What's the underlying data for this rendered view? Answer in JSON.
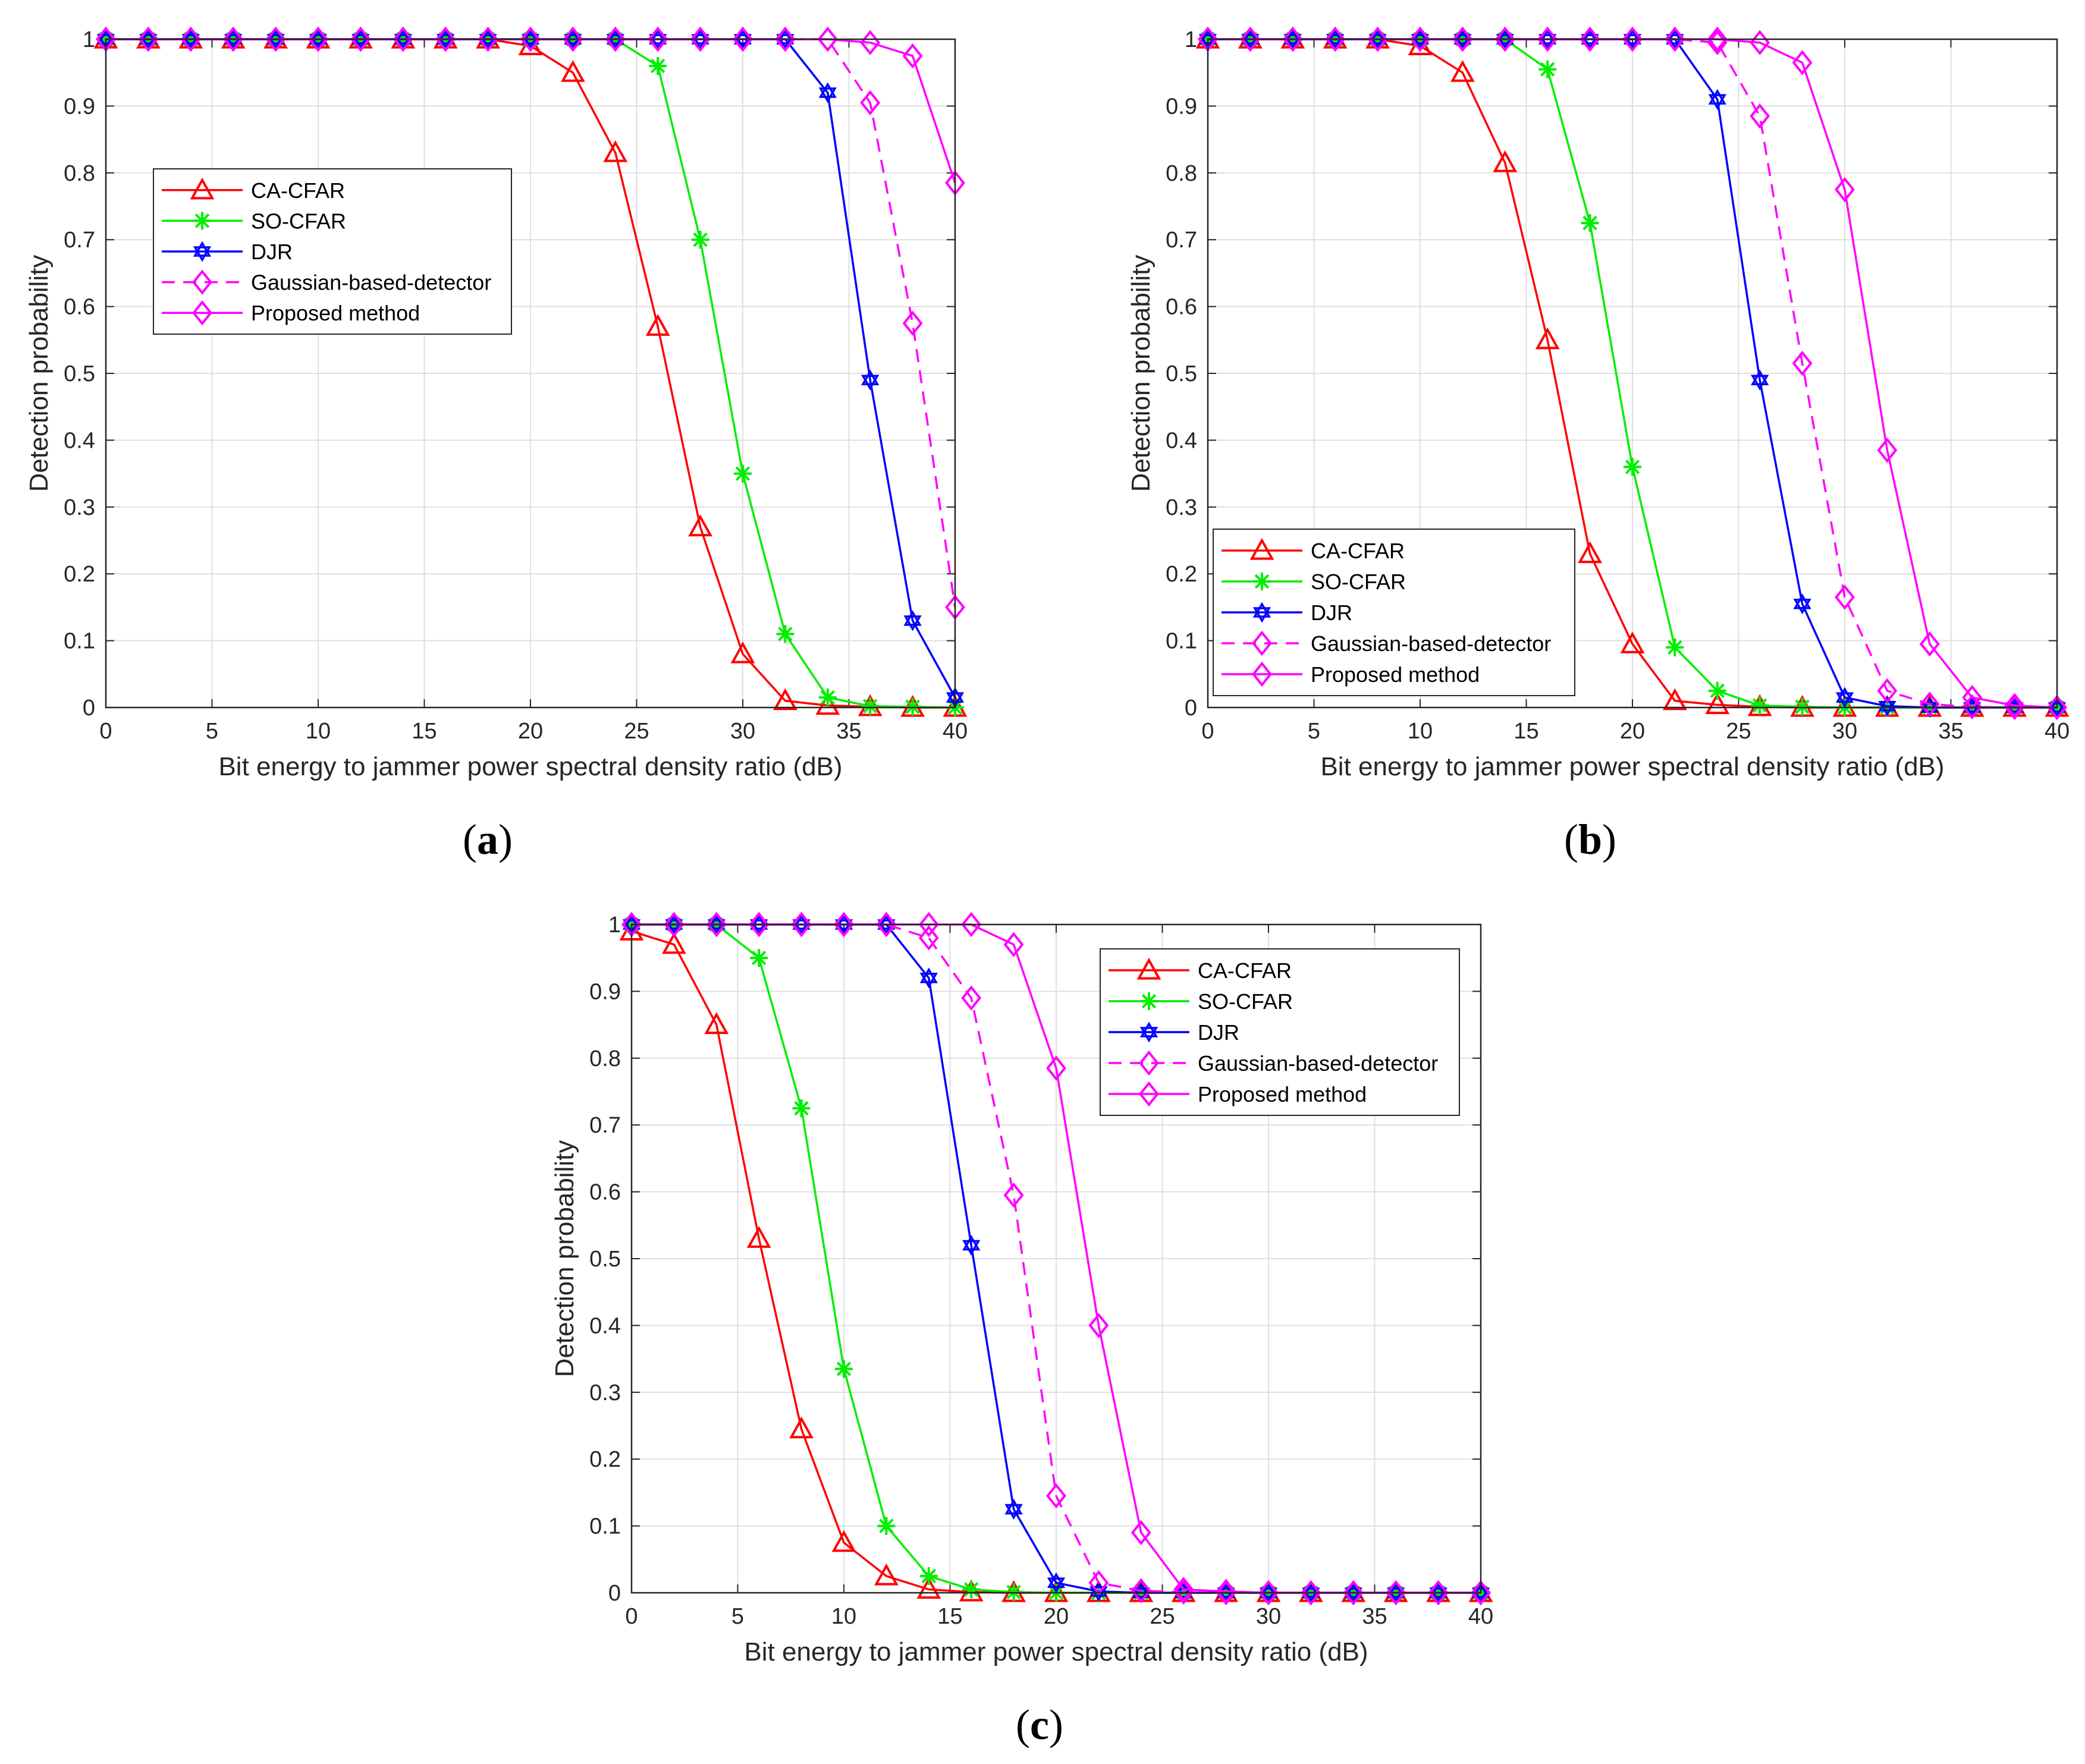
{
  "figure": {
    "x_label": "Bit energy to jammer power spectral density ratio (dB)",
    "y_label": "Detection probability",
    "captions": [
      {
        "open": "(",
        "letter": "a",
        "close": ")"
      },
      {
        "open": "(",
        "letter": "b",
        "close": ")"
      },
      {
        "open": "(",
        "letter": "c",
        "close": ")"
      }
    ]
  },
  "colors": {
    "ca": "#ff0000",
    "so": "#00ee00",
    "djr": "#0000ff",
    "gauss": "#ff00ff",
    "proposed": "#ff00ff"
  },
  "chart_data": [
    {
      "type": "line",
      "panel": "a",
      "xlabel": "Bit energy to jammer power spectral density ratio (dB)",
      "ylabel": "Detection probability",
      "xlim": [
        0,
        40
      ],
      "ylim": [
        0,
        1
      ],
      "xticks": [
        0,
        5,
        10,
        15,
        20,
        25,
        30,
        35,
        40
      ],
      "yticks": [
        0,
        0.1,
        0.2,
        0.3,
        0.4,
        0.5,
        0.6,
        0.7,
        0.8,
        0.9,
        1
      ],
      "grid": true,
      "legend_position": "left",
      "x": [
        0,
        2,
        4,
        6,
        8,
        10,
        12,
        14,
        16,
        18,
        20,
        22,
        24,
        26,
        28,
        30,
        32,
        34,
        36,
        38,
        40
      ],
      "series": [
        {
          "name": "CA-CFAR",
          "marker": "triangle",
          "dash": false,
          "color_key": "ca",
          "values": [
            1,
            1,
            1,
            1,
            1,
            1,
            1,
            1,
            1,
            1,
            0.99,
            0.95,
            0.83,
            0.57,
            0.27,
            0.08,
            0.01,
            0.003,
            0.001,
            0,
            0
          ]
        },
        {
          "name": "SO-CFAR",
          "marker": "star",
          "dash": false,
          "color_key": "so",
          "values": [
            1,
            1,
            1,
            1,
            1,
            1,
            1,
            1,
            1,
            1,
            1,
            1,
            1,
            0.96,
            0.7,
            0.35,
            0.11,
            0.015,
            0.002,
            0.001,
            0
          ]
        },
        {
          "name": "DJR",
          "marker": "hexagram",
          "dash": false,
          "color_key": "djr",
          "values": [
            1,
            1,
            1,
            1,
            1,
            1,
            1,
            1,
            1,
            1,
            1,
            1,
            1,
            1,
            1,
            1,
            1,
            0.92,
            0.49,
            0.13,
            0.015
          ]
        },
        {
          "name": "Gaussian-based-detector",
          "marker": "diamond",
          "dash": true,
          "color_key": "gauss",
          "values": [
            1,
            1,
            1,
            1,
            1,
            1,
            1,
            1,
            1,
            1,
            1,
            1,
            1,
            1,
            1,
            1,
            1,
            1,
            0.905,
            0.575,
            0.15
          ]
        },
        {
          "name": "Proposed method",
          "marker": "diamond",
          "dash": false,
          "color_key": "proposed",
          "values": [
            1,
            1,
            1,
            1,
            1,
            1,
            1,
            1,
            1,
            1,
            1,
            1,
            1,
            1,
            1,
            1,
            1,
            1,
            0.995,
            0.975,
            0.785
          ]
        }
      ]
    },
    {
      "type": "line",
      "panel": "b",
      "xlabel": "Bit energy to jammer power spectral density ratio (dB)",
      "ylabel": "Detection probability",
      "xlim": [
        0,
        40
      ],
      "ylim": [
        0,
        1
      ],
      "xticks": [
        0,
        5,
        10,
        15,
        20,
        25,
        30,
        35,
        40
      ],
      "yticks": [
        0,
        0.1,
        0.2,
        0.3,
        0.4,
        0.5,
        0.6,
        0.7,
        0.8,
        0.9,
        1
      ],
      "grid": true,
      "legend_position": "bottom-left",
      "x": [
        0,
        2,
        4,
        6,
        8,
        10,
        12,
        14,
        16,
        18,
        20,
        22,
        24,
        26,
        28,
        30,
        32,
        34,
        36,
        38,
        40
      ],
      "series": [
        {
          "name": "CA-CFAR",
          "marker": "triangle",
          "dash": false,
          "color_key": "ca",
          "values": [
            1,
            1,
            1,
            1,
            1,
            0.99,
            0.95,
            0.815,
            0.55,
            0.23,
            0.095,
            0.01,
            0.004,
            0.001,
            0,
            0,
            0,
            0,
            0,
            0,
            0
          ]
        },
        {
          "name": "SO-CFAR",
          "marker": "star",
          "dash": false,
          "color_key": "so",
          "values": [
            1,
            1,
            1,
            1,
            1,
            1,
            1,
            1,
            0.955,
            0.725,
            0.36,
            0.09,
            0.025,
            0.003,
            0.001,
            0,
            0,
            0,
            0,
            0,
            0
          ]
        },
        {
          "name": "DJR",
          "marker": "hexagram",
          "dash": false,
          "color_key": "djr",
          "values": [
            1,
            1,
            1,
            1,
            1,
            1,
            1,
            1,
            1,
            1,
            1,
            1,
            0.91,
            0.49,
            0.155,
            0.015,
            0.002,
            0,
            0,
            0,
            0
          ]
        },
        {
          "name": "Gaussian-based-detector",
          "marker": "diamond",
          "dash": true,
          "color_key": "gauss",
          "values": [
            1,
            1,
            1,
            1,
            1,
            1,
            1,
            1,
            1,
            1,
            1,
            1,
            0.995,
            0.885,
            0.515,
            0.165,
            0.025,
            0.005,
            0.001,
            0,
            0
          ]
        },
        {
          "name": "Proposed method",
          "marker": "diamond",
          "dash": false,
          "color_key": "proposed",
          "values": [
            1,
            1,
            1,
            1,
            1,
            1,
            1,
            1,
            1,
            1,
            1,
            1,
            1,
            0.995,
            0.965,
            0.775,
            0.385,
            0.095,
            0.015,
            0.003,
            0
          ]
        }
      ]
    },
    {
      "type": "line",
      "panel": "c",
      "xlabel": "Bit energy to jammer power spectral density ratio (dB)",
      "ylabel": "Detection probability",
      "xlim": [
        0,
        40
      ],
      "ylim": [
        0,
        1
      ],
      "xticks": [
        0,
        5,
        10,
        15,
        20,
        25,
        30,
        35,
        40
      ],
      "yticks": [
        0,
        0.1,
        0.2,
        0.3,
        0.4,
        0.5,
        0.6,
        0.7,
        0.8,
        0.9,
        1
      ],
      "grid": true,
      "legend_position": "top-right",
      "x": [
        0,
        2,
        4,
        6,
        8,
        10,
        12,
        14,
        16,
        18,
        20,
        22,
        24,
        26,
        28,
        30,
        32,
        34,
        36,
        38,
        40
      ],
      "series": [
        {
          "name": "CA-CFAR",
          "marker": "triangle",
          "dash": false,
          "color_key": "ca",
          "values": [
            0.99,
            0.97,
            0.85,
            0.53,
            0.245,
            0.075,
            0.025,
            0.005,
            0.001,
            0,
            0,
            0,
            0,
            0,
            0,
            0,
            0,
            0,
            0,
            0,
            0
          ]
        },
        {
          "name": "SO-CFAR",
          "marker": "star",
          "dash": false,
          "color_key": "so",
          "values": [
            1,
            1,
            1,
            0.95,
            0.725,
            0.335,
            0.1,
            0.025,
            0.005,
            0.001,
            0,
            0,
            0,
            0,
            0,
            0,
            0,
            0,
            0,
            0,
            0
          ]
        },
        {
          "name": "DJR",
          "marker": "hexagram",
          "dash": false,
          "color_key": "djr",
          "values": [
            1,
            1,
            1,
            1,
            1,
            1,
            1,
            0.92,
            0.52,
            0.125,
            0.015,
            0.002,
            0,
            0,
            0,
            0,
            0,
            0,
            0,
            0,
            0
          ]
        },
        {
          "name": "Gaussian-based-detector",
          "marker": "diamond",
          "dash": true,
          "color_key": "gauss",
          "values": [
            1,
            1,
            1,
            1,
            1,
            1,
            1,
            0.98,
            0.89,
            0.595,
            0.145,
            0.015,
            0.003,
            0.001,
            0,
            0,
            0,
            0,
            0,
            0,
            0
          ]
        },
        {
          "name": "Proposed method",
          "marker": "diamond",
          "dash": false,
          "color_key": "proposed",
          "values": [
            1,
            1,
            1,
            1,
            1,
            1,
            1,
            1,
            1,
            0.97,
            0.785,
            0.4,
            0.09,
            0.005,
            0.002,
            0,
            0,
            0,
            0,
            0,
            0
          ]
        }
      ]
    }
  ]
}
